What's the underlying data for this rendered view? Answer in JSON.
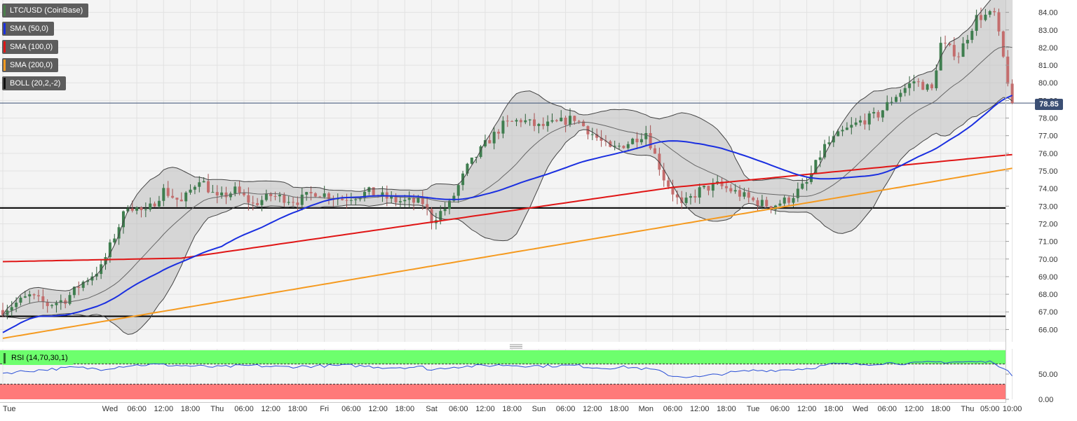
{
  "chart_data": {
    "type": "candlestick",
    "instrument": "LTC/USD (CoinBase)",
    "legend": [
      {
        "key": "pair",
        "label": "LTC/USD (CoinBase)",
        "color": "#4a7f4a"
      },
      {
        "key": "sma50",
        "label": "SMA (50,0)",
        "color": "#1a2fe0"
      },
      {
        "key": "sma100",
        "label": "SMA (100,0)",
        "color": "#e01616"
      },
      {
        "key": "sma200",
        "label": "SMA (200,0)",
        "color": "#f59a1f"
      },
      {
        "key": "boll",
        "label": "BOLL (20,2,-2)",
        "color": "#111111"
      }
    ],
    "current_price_label": "78.85",
    "current_price": 78.85,
    "ylim": [
      65.3,
      84.7
    ],
    "y_ticks": [
      "66.00",
      "67.00",
      "68.00",
      "69.00",
      "70.00",
      "71.00",
      "72.00",
      "73.00",
      "74.00",
      "75.00",
      "76.00",
      "77.00",
      "78.00",
      "79.00",
      "80.00",
      "81.00",
      "82.00",
      "83.00",
      "84.00"
    ],
    "x_ticks": [
      {
        "label": "Tue",
        "bar": 0
      },
      {
        "label": "Wed",
        "bar": 24
      },
      {
        "label": "06:00",
        "bar": 30
      },
      {
        "label": "12:00",
        "bar": 36
      },
      {
        "label": "18:00",
        "bar": 42
      },
      {
        "label": "Thu",
        "bar": 48
      },
      {
        "label": "06:00",
        "bar": 54
      },
      {
        "label": "12:00",
        "bar": 60
      },
      {
        "label": "18:00",
        "bar": 66
      },
      {
        "label": "Fri",
        "bar": 72
      },
      {
        "label": "06:00",
        "bar": 78
      },
      {
        "label": "12:00",
        "bar": 84
      },
      {
        "label": "18:00",
        "bar": 90
      },
      {
        "label": "Sat",
        "bar": 96
      },
      {
        "label": "06:00",
        "bar": 102
      },
      {
        "label": "12:00",
        "bar": 108
      },
      {
        "label": "18:00",
        "bar": 114
      },
      {
        "label": "Sun",
        "bar": 120
      },
      {
        "label": "06:00",
        "bar": 126
      },
      {
        "label": "12:00",
        "bar": 132
      },
      {
        "label": "18:00",
        "bar": 138
      },
      {
        "label": "Mon",
        "bar": 144
      },
      {
        "label": "06:00",
        "bar": 150
      },
      {
        "label": "12:00",
        "bar": 156
      },
      {
        "label": "18:00",
        "bar": 162
      },
      {
        "label": "Tue",
        "bar": 168
      },
      {
        "label": "06:00",
        "bar": 174
      },
      {
        "label": "12:00",
        "bar": 180
      },
      {
        "label": "18:00",
        "bar": 186
      },
      {
        "label": "Wed",
        "bar": 192
      },
      {
        "label": "06:00",
        "bar": 198
      },
      {
        "label": "12:00",
        "bar": 204
      },
      {
        "label": "18:00",
        "bar": 210
      },
      {
        "label": "Thu",
        "bar": 216
      },
      {
        "label": "05:00",
        "bar": 221
      },
      {
        "label": "10:00",
        "bar": 226
      }
    ],
    "horizontal_levels": [
      72.9,
      66.75
    ],
    "price_waypoints": [
      [
        0,
        67.1
      ],
      [
        6,
        67.9
      ],
      [
        10,
        67.4
      ],
      [
        14,
        67.7
      ],
      [
        18,
        68.7
      ],
      [
        22,
        69.5
      ],
      [
        26,
        71.9
      ],
      [
        28,
        73.1
      ],
      [
        32,
        72.6
      ],
      [
        36,
        73.9
      ],
      [
        40,
        73.2
      ],
      [
        44,
        74.6
      ],
      [
        48,
        73.4
      ],
      [
        52,
        73.9
      ],
      [
        56,
        73.1
      ],
      [
        60,
        73.6
      ],
      [
        66,
        73.3
      ],
      [
        70,
        73.8
      ],
      [
        76,
        73.4
      ],
      [
        82,
        73.8
      ],
      [
        88,
        73.3
      ],
      [
        94,
        73.2
      ],
      [
        96,
        72.2
      ],
      [
        100,
        73.1
      ],
      [
        104,
        75.2
      ],
      [
        108,
        76.5
      ],
      [
        112,
        77.6
      ],
      [
        116,
        77.9
      ],
      [
        120,
        77.5
      ],
      [
        124,
        77.7
      ],
      [
        128,
        78.0
      ],
      [
        132,
        77.1
      ],
      [
        136,
        76.2
      ],
      [
        140,
        76.6
      ],
      [
        144,
        77.2
      ],
      [
        148,
        74.6
      ],
      [
        152,
        73.0
      ],
      [
        156,
        73.9
      ],
      [
        160,
        74.2
      ],
      [
        164,
        73.8
      ],
      [
        168,
        73.3
      ],
      [
        172,
        73.0
      ],
      [
        176,
        73.4
      ],
      [
        180,
        74.3
      ],
      [
        184,
        76.4
      ],
      [
        188,
        77.2
      ],
      [
        192,
        77.8
      ],
      [
        196,
        78.2
      ],
      [
        200,
        79.3
      ],
      [
        204,
        80.1
      ],
      [
        208,
        79.6
      ],
      [
        210,
        82.2
      ],
      [
        214,
        81.6
      ],
      [
        218,
        83.7
      ],
      [
        222,
        83.9
      ],
      [
        224,
        81.4
      ],
      [
        226,
        78.85
      ]
    ],
    "rsi": {
      "label": "RSI (14,70,30,1)",
      "ylim": [
        0,
        100
      ],
      "overbought": 70,
      "oversold": 30,
      "y_ticks": [
        "0.00",
        "50.00"
      ],
      "waypoints": [
        [
          0,
          52
        ],
        [
          8,
          58
        ],
        [
          16,
          63
        ],
        [
          22,
          60
        ],
        [
          28,
          67
        ],
        [
          34,
          69
        ],
        [
          42,
          66
        ],
        [
          48,
          64
        ],
        [
          56,
          67
        ],
        [
          62,
          64
        ],
        [
          70,
          66
        ],
        [
          78,
          67
        ],
        [
          86,
          63
        ],
        [
          94,
          64
        ],
        [
          96,
          58
        ],
        [
          100,
          64
        ],
        [
          106,
          66
        ],
        [
          112,
          68
        ],
        [
          120,
          66
        ],
        [
          128,
          67
        ],
        [
          134,
          62
        ],
        [
          140,
          64
        ],
        [
          146,
          58
        ],
        [
          150,
          46
        ],
        [
          156,
          44
        ],
        [
          162,
          52
        ],
        [
          168,
          57
        ],
        [
          174,
          58
        ],
        [
          180,
          61
        ],
        [
          186,
          70
        ],
        [
          192,
          69
        ],
        [
          198,
          72
        ],
        [
          204,
          71
        ],
        [
          210,
          74
        ],
        [
          216,
          74
        ],
        [
          222,
          74
        ],
        [
          224,
          60
        ],
        [
          226,
          48
        ]
      ]
    }
  }
}
